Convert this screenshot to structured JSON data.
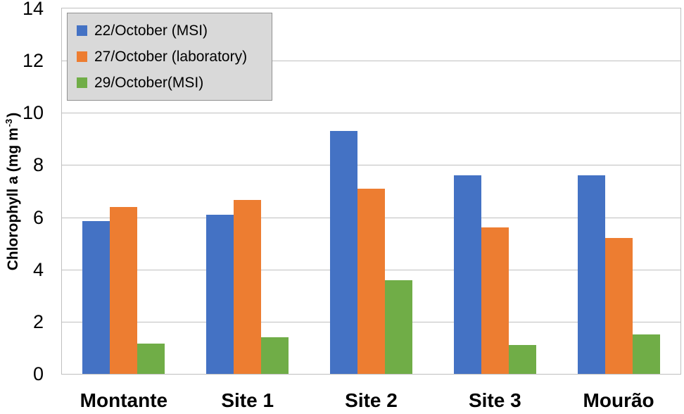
{
  "chart_data": {
    "type": "bar",
    "title": "",
    "categories": [
      "Montante",
      "Site 1",
      "Site 2",
      "Site 3",
      "Mourão"
    ],
    "series": [
      {
        "name": "22/October (MSI)",
        "color": "#4472C4",
        "values": [
          5.85,
          6.1,
          9.3,
          7.6,
          7.6
        ]
      },
      {
        "name": "27/October (laboratory)",
        "color": "#ED7D31",
        "values": [
          6.4,
          6.65,
          7.1,
          5.6,
          5.2
        ]
      },
      {
        "name": "29/October(MSI)",
        "color": "#70AD47",
        "values": [
          1.15,
          1.4,
          3.6,
          1.1,
          1.5
        ]
      }
    ],
    "xlabel": "",
    "ylabel": "Chlorophyll a (mg m⁻³)",
    "ylabel_parts": {
      "prefix": "Chlorophyll a (mg m",
      "sup": "-3",
      "suffix": ")"
    },
    "ylim": [
      0,
      14
    ],
    "yticks": [
      0,
      2,
      4,
      6,
      8,
      10,
      12,
      14
    ],
    "grid": true,
    "legend_position": "top-left-inside",
    "colors": {
      "gridline": "#BFBFBF",
      "plot_border": "#BFBFBF",
      "legend_bg": "#D9D9D9",
      "legend_border": "#919191",
      "text": "#000000",
      "background": "#FFFFFF"
    }
  }
}
